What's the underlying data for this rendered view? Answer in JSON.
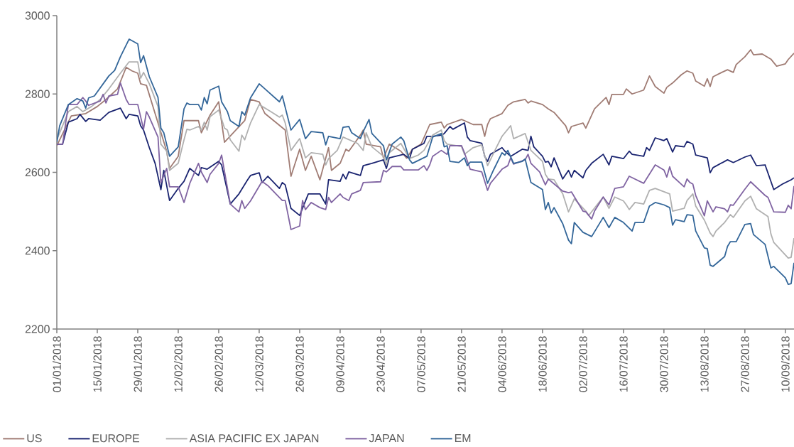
{
  "chart_data": {
    "type": "line",
    "xlim": [
      "2018-01-01",
      "2018-09-13"
    ],
    "xticks": [
      {
        "value": "2018-01-01",
        "label": "01/01/2018"
      },
      {
        "value": "2018-01-15",
        "label": "15/01/2018"
      },
      {
        "value": "2018-01-29",
        "label": "29/01/2018"
      },
      {
        "value": "2018-02-12",
        "label": "12/02/2018"
      },
      {
        "value": "2018-02-26",
        "label": "26/02/2018"
      },
      {
        "value": "2018-03-12",
        "label": "12/03/2018"
      },
      {
        "value": "2018-03-26",
        "label": "26/03/2018"
      },
      {
        "value": "2018-04-09",
        "label": "09/04/2018"
      },
      {
        "value": "2018-04-23",
        "label": "23/04/2018"
      },
      {
        "value": "2018-05-07",
        "label": "07/05/2018"
      },
      {
        "value": "2018-05-21",
        "label": "21/05/2018"
      },
      {
        "value": "2018-06-04",
        "label": "04/06/2018"
      },
      {
        "value": "2018-06-18",
        "label": "18/06/2018"
      },
      {
        "value": "2018-07-02",
        "label": "02/07/2018"
      },
      {
        "value": "2018-07-16",
        "label": "16/07/2018"
      },
      {
        "value": "2018-07-30",
        "label": "30/07/2018"
      },
      {
        "value": "2018-08-13",
        "label": "13/08/2018"
      },
      {
        "value": "2018-08-27",
        "label": "27/08/2018"
      },
      {
        "value": "2018-09-10",
        "label": "10/09/2018"
      }
    ],
    "ylim": [
      2200,
      3000
    ],
    "yticks": [
      2200,
      2400,
      2600,
      2800,
      3000
    ],
    "legend": "bottom",
    "series": [
      {
        "name": "US",
        "color": "#a07c74",
        "x": [
          "2018-01-01",
          "2018-01-06",
          "2018-01-11",
          "2018-01-15",
          "2018-01-18",
          "2018-01-22",
          "2018-01-25",
          "2018-01-27",
          "2018-01-29",
          "2018-01-30",
          "2018-02-01",
          "2018-02-05",
          "2018-02-08",
          "2018-02-09",
          "2018-02-12",
          "2018-02-14",
          "2018-02-19",
          "2018-02-20",
          "2018-02-23",
          "2018-02-26",
          "2018-02-28",
          "2018-03-07",
          "2018-03-09",
          "2018-03-12",
          "2018-03-14",
          "2018-03-18",
          "2018-03-21",
          "2018-03-23",
          "2018-03-26",
          "2018-03-28",
          "2018-03-30",
          "2018-04-02",
          "2018-04-05",
          "2018-04-06",
          "2018-04-09",
          "2018-04-11",
          "2018-04-12",
          "2018-04-16",
          "2018-04-17",
          "2018-04-18",
          "2018-04-23",
          "2018-04-24",
          "2018-04-26",
          "2018-04-30",
          "2018-05-02",
          "2018-05-04",
          "2018-05-07",
          "2018-05-10",
          "2018-05-14",
          "2018-05-15",
          "2018-05-16",
          "2018-05-21",
          "2018-05-22",
          "2018-05-25",
          "2018-05-28",
          "2018-05-29",
          "2018-05-30",
          "2018-05-31",
          "2018-06-04",
          "2018-06-06",
          "2018-06-08",
          "2018-06-12",
          "2018-06-13",
          "2018-06-14",
          "2018-06-18",
          "2018-06-20",
          "2018-06-22",
          "2018-06-26",
          "2018-06-27",
          "2018-06-28",
          "2018-07-02",
          "2018-07-03",
          "2018-07-06",
          "2018-07-10",
          "2018-07-11",
          "2018-07-12",
          "2018-07-16",
          "2018-07-17",
          "2018-07-19",
          "2018-07-23",
          "2018-07-25",
          "2018-07-27",
          "2018-07-30",
          "2018-07-31",
          "2018-08-02",
          "2018-08-05",
          "2018-08-07",
          "2018-08-09",
          "2018-08-10",
          "2018-08-13",
          "2018-08-14",
          "2018-08-15",
          "2018-08-16",
          "2018-08-19",
          "2018-08-21",
          "2018-08-23",
          "2018-08-24",
          "2018-08-27",
          "2018-08-29",
          "2018-08-30",
          "2018-09-02",
          "2018-09-05",
          "2018-09-07",
          "2018-09-10",
          "2018-09-11",
          "2018-09-13"
        ],
        "values": [
          2668,
          2744,
          2750,
          2768,
          2786,
          2813,
          2868,
          2859,
          2853,
          2826,
          2822,
          2726,
          2654,
          2610,
          2641,
          2732,
          2732,
          2701,
          2746,
          2780,
          2677,
          2732,
          2786,
          2780,
          2750,
          2726,
          2708,
          2590,
          2659,
          2605,
          2641,
          2581,
          2663,
          2605,
          2623,
          2659,
          2654,
          2695,
          2708,
          2672,
          2665,
          2636,
          2672,
          2654,
          2636,
          2659,
          2672,
          2722,
          2728,
          2713,
          2722,
          2735,
          2732,
          2722,
          2722,
          2692,
          2722,
          2737,
          2750,
          2771,
          2780,
          2786,
          2777,
          2782,
          2773,
          2762,
          2753,
          2719,
          2701,
          2717,
          2726,
          2713,
          2762,
          2791,
          2773,
          2799,
          2799,
          2813,
          2800,
          2810,
          2846,
          2819,
          2802,
          2817,
          2828,
          2849,
          2859,
          2853,
          2833,
          2820,
          2839,
          2819,
          2844,
          2855,
          2862,
          2855,
          2875,
          2895,
          2913,
          2900,
          2902,
          2889,
          2871,
          2877,
          2888,
          2904
        ]
      },
      {
        "name": "EUROPE",
        "color": "#1a2470",
        "x": [
          "2018-01-01",
          "2018-01-03",
          "2018-01-05",
          "2018-01-08",
          "2018-01-09",
          "2018-01-11",
          "2018-01-12",
          "2018-01-16",
          "2018-01-19",
          "2018-01-23",
          "2018-01-25",
          "2018-01-26",
          "2018-01-29",
          "2018-01-30",
          "2018-01-31",
          "2018-02-02",
          "2018-02-04",
          "2018-02-06",
          "2018-02-07",
          "2018-02-09",
          "2018-02-12",
          "2018-02-14",
          "2018-02-16",
          "2018-02-19",
          "2018-02-20",
          "2018-02-22",
          "2018-02-26",
          "2018-02-27",
          "2018-03-02",
          "2018-03-05",
          "2018-03-08",
          "2018-03-09",
          "2018-03-12",
          "2018-03-13",
          "2018-03-15",
          "2018-03-19",
          "2018-03-20",
          "2018-03-21",
          "2018-03-23",
          "2018-03-26",
          "2018-03-29",
          "2018-04-02",
          "2018-04-04",
          "2018-04-05",
          "2018-04-09",
          "2018-04-10",
          "2018-04-11",
          "2018-04-12",
          "2018-04-16",
          "2018-04-17",
          "2018-04-20",
          "2018-04-24",
          "2018-04-25",
          "2018-04-26",
          "2018-05-01",
          "2018-05-03",
          "2018-05-04",
          "2018-05-08",
          "2018-05-09",
          "2018-05-11",
          "2018-05-14",
          "2018-05-15",
          "2018-05-17",
          "2018-05-18",
          "2018-05-22",
          "2018-05-23",
          "2018-05-24",
          "2018-05-28",
          "2018-05-29",
          "2018-05-30",
          "2018-05-31",
          "2018-06-04",
          "2018-06-05",
          "2018-06-07",
          "2018-06-11",
          "2018-06-13",
          "2018-06-14",
          "2018-06-15",
          "2018-06-18",
          "2018-06-19",
          "2018-06-20",
          "2018-06-21",
          "2018-06-22",
          "2018-06-25",
          "2018-06-27",
          "2018-06-28",
          "2018-06-29",
          "2018-07-02",
          "2018-07-03",
          "2018-07-05",
          "2018-07-09",
          "2018-07-11",
          "2018-07-12",
          "2018-07-16",
          "2018-07-18",
          "2018-07-19",
          "2018-07-23",
          "2018-07-24",
          "2018-07-25",
          "2018-07-27",
          "2018-07-30",
          "2018-07-31",
          "2018-08-02",
          "2018-08-03",
          "2018-08-06",
          "2018-08-07",
          "2018-08-09",
          "2018-08-10",
          "2018-08-14",
          "2018-08-15",
          "2018-08-16",
          "2018-08-21",
          "2018-08-23",
          "2018-08-27",
          "2018-08-29",
          "2018-08-31",
          "2018-09-03",
          "2018-09-06",
          "2018-09-09",
          "2018-09-12",
          "2018-09-13"
        ],
        "values": [
          2672,
          2672,
          2728,
          2737,
          2748,
          2730,
          2737,
          2733,
          2753,
          2764,
          2737,
          2748,
          2744,
          2719,
          2708,
          2663,
          2623,
          2556,
          2605,
          2528,
          2559,
          2577,
          2610,
          2592,
          2612,
          2608,
          2628,
          2619,
          2519,
          2545,
          2581,
          2592,
          2599,
          2574,
          2590,
          2559,
          2574,
          2568,
          2508,
          2490,
          2545,
          2545,
          2519,
          2581,
          2577,
          2595,
          2583,
          2601,
          2592,
          2617,
          2623,
          2632,
          2610,
          2637,
          2646,
          2635,
          2659,
          2674,
          2692,
          2692,
          2695,
          2699,
          2717,
          2710,
          2726,
          2690,
          2681,
          2674,
          2641,
          2628,
          2646,
          2663,
          2654,
          2641,
          2659,
          2656,
          2692,
          2665,
          2641,
          2626,
          2628,
          2614,
          2637,
          2583,
          2605,
          2588,
          2605,
          2586,
          2605,
          2623,
          2646,
          2619,
          2641,
          2635,
          2654,
          2646,
          2641,
          2663,
          2656,
          2688,
          2681,
          2686,
          2652,
          2668,
          2665,
          2679,
          2672,
          2644,
          2637,
          2599,
          2612,
          2632,
          2625,
          2639,
          2644,
          2617,
          2619,
          2556,
          2570,
          2581,
          2586
        ]
      },
      {
        "name": "ASIA PACIFIC EX JAPAN",
        "color": "#b0b0b0",
        "x": [
          "2018-01-01",
          "2018-01-05",
          "2018-01-08",
          "2018-01-10",
          "2018-01-13",
          "2018-01-16",
          "2018-01-19",
          "2018-01-23",
          "2018-01-26",
          "2018-01-29",
          "2018-01-30",
          "2018-01-31",
          "2018-02-02",
          "2018-02-05",
          "2018-02-06",
          "2018-02-08",
          "2018-02-09",
          "2018-02-12",
          "2018-02-14",
          "2018-02-15",
          "2018-02-16",
          "2018-02-19",
          "2018-02-20",
          "2018-02-21",
          "2018-02-22",
          "2018-02-23",
          "2018-02-26",
          "2018-02-28",
          "2018-03-01",
          "2018-03-02",
          "2018-03-05",
          "2018-03-06",
          "2018-03-07",
          "2018-03-09",
          "2018-03-12",
          "2018-03-14",
          "2018-03-16",
          "2018-03-19",
          "2018-03-20",
          "2018-03-21",
          "2018-03-23",
          "2018-03-26",
          "2018-03-28",
          "2018-03-30",
          "2018-04-03",
          "2018-04-04",
          "2018-04-05",
          "2018-04-08",
          "2018-04-10",
          "2018-04-15",
          "2018-04-17",
          "2018-04-18",
          "2018-04-20",
          "2018-04-24",
          "2018-04-25",
          "2018-04-26",
          "2018-04-30",
          "2018-05-03",
          "2018-05-06",
          "2018-05-08",
          "2018-05-11",
          "2018-05-14",
          "2018-05-15",
          "2018-05-16",
          "2018-05-21",
          "2018-05-22",
          "2018-05-25",
          "2018-05-28",
          "2018-05-30",
          "2018-06-02",
          "2018-06-04",
          "2018-06-07",
          "2018-06-08",
          "2018-06-12",
          "2018-06-14",
          "2018-06-18",
          "2018-06-19",
          "2018-06-20",
          "2018-06-22",
          "2018-06-25",
          "2018-06-27",
          "2018-06-29",
          "2018-07-03",
          "2018-07-04",
          "2018-07-09",
          "2018-07-11",
          "2018-07-13",
          "2018-07-16",
          "2018-07-17",
          "2018-07-18",
          "2018-07-20",
          "2018-07-23",
          "2018-07-25",
          "2018-07-27",
          "2018-08-01",
          "2018-08-02",
          "2018-08-06",
          "2018-08-07",
          "2018-08-09",
          "2018-08-10",
          "2018-08-13",
          "2018-08-15",
          "2018-08-16",
          "2018-08-17",
          "2018-08-20",
          "2018-08-22",
          "2018-08-23",
          "2018-08-27",
          "2018-08-29",
          "2018-08-31",
          "2018-09-04",
          "2018-09-05",
          "2018-09-06",
          "2018-09-11",
          "2018-09-12",
          "2018-09-13"
        ],
        "values": [
          2683,
          2755,
          2768,
          2755,
          2768,
          2786,
          2813,
          2853,
          2882,
          2882,
          2840,
          2855,
          2826,
          2768,
          2672,
          2654,
          2605,
          2623,
          2683,
          2710,
          2708,
          2717,
          2708,
          2728,
          2708,
          2742,
          2759,
          2713,
          2708,
          2683,
          2654,
          2695,
          2683,
          2726,
          2773,
          2764,
          2755,
          2741,
          2746,
          2726,
          2656,
          2686,
          2637,
          2650,
          2646,
          2619,
          2635,
          2656,
          2690,
          2674,
          2656,
          2701,
          2665,
          2641,
          2619,
          2650,
          2674,
          2635,
          2644,
          2656,
          2695,
          2708,
          2681,
          2672,
          2666,
          2646,
          2663,
          2670,
          2617,
          2663,
          2692,
          2719,
          2686,
          2699,
          2656,
          2628,
          2595,
          2583,
          2581,
          2545,
          2499,
          2532,
          2501,
          2490,
          2537,
          2508,
          2537,
          2527,
          2517,
          2505,
          2523,
          2519,
          2554,
          2559,
          2545,
          2501,
          2508,
          2528,
          2545,
          2514,
          2478,
          2445,
          2436,
          2450,
          2472,
          2492,
          2485,
          2527,
          2539,
          2507,
          2487,
          2443,
          2421,
          2381,
          2383,
          2432
        ]
      },
      {
        "name": "JAPAN",
        "color": "#8064a2",
        "x": [
          "2018-01-01",
          "2018-01-03",
          "2018-01-05",
          "2018-01-08",
          "2018-01-10",
          "2018-01-11",
          "2018-01-12",
          "2018-01-16",
          "2018-01-17",
          "2018-01-18",
          "2018-01-19",
          "2018-01-22",
          "2018-01-23",
          "2018-01-25",
          "2018-01-26",
          "2018-01-29",
          "2018-01-31",
          "2018-02-01",
          "2018-02-02",
          "2018-02-05",
          "2018-02-06",
          "2018-02-08",
          "2018-02-09",
          "2018-02-12",
          "2018-02-14",
          "2018-02-16",
          "2018-02-19",
          "2018-02-20",
          "2018-02-22",
          "2018-02-23",
          "2018-02-26",
          "2018-02-27",
          "2018-03-02",
          "2018-03-05",
          "2018-03-06",
          "2018-03-07",
          "2018-03-09",
          "2018-03-13",
          "2018-03-15",
          "2018-03-20",
          "2018-03-21",
          "2018-03-23",
          "2018-03-26",
          "2018-03-27",
          "2018-03-28",
          "2018-03-30",
          "2018-04-02",
          "2018-04-04",
          "2018-04-05",
          "2018-04-06",
          "2018-04-09",
          "2018-04-10",
          "2018-04-12",
          "2018-04-13",
          "2018-04-16",
          "2018-04-17",
          "2018-04-23",
          "2018-04-24",
          "2018-04-25",
          "2018-04-27",
          "2018-04-30",
          "2018-05-01",
          "2018-05-06",
          "2018-05-08",
          "2018-05-09",
          "2018-05-10",
          "2018-05-11",
          "2018-05-14",
          "2018-05-16",
          "2018-05-17",
          "2018-05-21",
          "2018-05-22",
          "2018-05-24",
          "2018-05-28",
          "2018-05-30",
          "2018-05-31",
          "2018-06-04",
          "2018-06-06",
          "2018-06-07",
          "2018-06-08",
          "2018-06-12",
          "2018-06-13",
          "2018-06-14",
          "2018-06-17",
          "2018-06-19",
          "2018-06-20",
          "2018-06-25",
          "2018-06-27",
          "2018-06-28",
          "2018-07-02",
          "2018-07-03",
          "2018-07-05",
          "2018-07-06",
          "2018-07-09",
          "2018-07-11",
          "2018-07-13",
          "2018-07-16",
          "2018-07-18",
          "2018-07-23",
          "2018-07-27",
          "2018-07-30",
          "2018-07-31",
          "2018-08-01",
          "2018-08-02",
          "2018-08-06",
          "2018-08-07",
          "2018-08-08",
          "2018-08-09",
          "2018-08-10",
          "2018-08-13",
          "2018-08-14",
          "2018-08-16",
          "2018-08-17",
          "2018-08-20",
          "2018-08-21",
          "2018-08-22",
          "2018-08-23",
          "2018-08-27",
          "2018-08-29",
          "2018-09-03",
          "2018-09-04",
          "2018-09-06",
          "2018-09-10",
          "2018-09-11",
          "2018-09-12",
          "2018-09-13"
        ],
        "values": [
          2672,
          2672,
          2773,
          2773,
          2791,
          2782,
          2771,
          2782,
          2799,
          2777,
          2795,
          2799,
          2828,
          2786,
          2773,
          2773,
          2710,
          2755,
          2741,
          2690,
          2574,
          2610,
          2563,
          2563,
          2523,
          2572,
          2623,
          2601,
          2574,
          2595,
          2623,
          2644,
          2519,
          2499,
          2528,
          2508,
          2527,
          2577,
          2566,
          2528,
          2528,
          2454,
          2463,
          2528,
          2505,
          2523,
          2510,
          2505,
          2536,
          2523,
          2545,
          2536,
          2528,
          2545,
          2554,
          2574,
          2576,
          2605,
          2601,
          2615,
          2615,
          2606,
          2606,
          2617,
          2605,
          2619,
          2641,
          2656,
          2646,
          2668,
          2668,
          2650,
          2608,
          2601,
          2554,
          2572,
          2608,
          2617,
          2637,
          2621,
          2632,
          2646,
          2623,
          2601,
          2568,
          2583,
          2552,
          2548,
          2550,
          2501,
          2499,
          2481,
          2501,
          2537,
          2517,
          2559,
          2563,
          2590,
          2572,
          2619,
          2606,
          2588,
          2614,
          2590,
          2563,
          2583,
          2574,
          2570,
          2541,
          2489,
          2527,
          2499,
          2512,
          2507,
          2499,
          2517,
          2516,
          2557,
          2576,
          2541,
          2536,
          2499,
          2498,
          2516,
          2507,
          2565
        ]
      },
      {
        "name": "EM",
        "color": "#336699",
        "x": [
          "2018-01-01",
          "2018-01-02",
          "2018-01-05",
          "2018-01-08",
          "2018-01-10",
          "2018-01-11",
          "2018-01-12",
          "2018-01-14",
          "2018-01-19",
          "2018-01-21",
          "2018-01-23",
          "2018-01-26",
          "2018-01-29",
          "2018-01-30",
          "2018-01-31",
          "2018-02-02",
          "2018-02-05",
          "2018-02-06",
          "2018-02-07",
          "2018-02-09",
          "2018-02-12",
          "2018-02-14",
          "2018-02-15",
          "2018-02-16",
          "2018-02-19",
          "2018-02-20",
          "2018-02-21",
          "2018-02-22",
          "2018-02-23",
          "2018-02-26",
          "2018-02-27",
          "2018-03-01",
          "2018-03-02",
          "2018-03-05",
          "2018-03-06",
          "2018-03-07",
          "2018-03-09",
          "2018-03-12",
          "2018-03-14",
          "2018-03-19",
          "2018-03-20",
          "2018-03-23",
          "2018-03-26",
          "2018-03-28",
          "2018-03-30",
          "2018-04-03",
          "2018-04-04",
          "2018-04-05",
          "2018-04-09",
          "2018-04-10",
          "2018-04-12",
          "2018-04-13",
          "2018-04-16",
          "2018-04-17",
          "2018-04-19",
          "2018-04-20",
          "2018-04-24",
          "2018-04-25",
          "2018-04-27",
          "2018-04-30",
          "2018-05-01",
          "2018-05-03",
          "2018-05-04",
          "2018-05-09",
          "2018-05-11",
          "2018-05-14",
          "2018-05-15",
          "2018-05-16",
          "2018-05-17",
          "2018-05-20",
          "2018-05-22",
          "2018-05-23",
          "2018-05-24",
          "2018-05-28",
          "2018-05-30",
          "2018-06-01",
          "2018-06-04",
          "2018-06-05",
          "2018-06-06",
          "2018-06-08",
          "2018-06-11",
          "2018-06-12",
          "2018-06-14",
          "2018-06-18",
          "2018-06-19",
          "2018-06-20",
          "2018-06-21",
          "2018-06-22",
          "2018-06-25",
          "2018-06-27",
          "2018-06-28",
          "2018-06-29",
          "2018-07-02",
          "2018-07-05",
          "2018-07-09",
          "2018-07-11",
          "2018-07-13",
          "2018-07-16",
          "2018-07-19",
          "2018-07-20",
          "2018-07-23",
          "2018-07-25",
          "2018-07-27",
          "2018-07-30",
          "2018-08-01",
          "2018-08-02",
          "2018-08-03",
          "2018-08-06",
          "2018-08-07",
          "2018-08-09",
          "2018-08-10",
          "2018-08-13",
          "2018-08-14",
          "2018-08-15",
          "2018-08-16",
          "2018-08-20",
          "2018-08-21",
          "2018-08-22",
          "2018-08-24",
          "2018-08-27",
          "2018-08-29",
          "2018-08-30",
          "2018-09-03",
          "2018-09-05",
          "2018-09-06",
          "2018-09-10",
          "2018-09-11",
          "2018-09-12",
          "2018-09-13"
        ],
        "values": [
          2677,
          2719,
          2773,
          2788,
          2782,
          2764,
          2790,
          2795,
          2846,
          2860,
          2895,
          2940,
          2928,
          2880,
          2898,
          2844,
          2791,
          2713,
          2701,
          2641,
          2665,
          2762,
          2777,
          2773,
          2773,
          2759,
          2791,
          2775,
          2810,
          2820,
          2780,
          2755,
          2732,
          2717,
          2755,
          2746,
          2790,
          2826,
          2813,
          2780,
          2795,
          2708,
          2735,
          2686,
          2704,
          2701,
          2670,
          2692,
          2686,
          2715,
          2717,
          2701,
          2686,
          2704,
          2735,
          2699,
          2668,
          2632,
          2672,
          2690,
          2681,
          2632,
          2623,
          2641,
          2690,
          2699,
          2665,
          2668,
          2628,
          2625,
          2637,
          2617,
          2626,
          2626,
          2572,
          2605,
          2650,
          2644,
          2656,
          2623,
          2628,
          2634,
          2574,
          2556,
          2505,
          2523,
          2496,
          2510,
          2469,
          2427,
          2418,
          2472,
          2447,
          2436,
          2485,
          2459,
          2485,
          2472,
          2450,
          2472,
          2472,
          2514,
          2523,
          2517,
          2510,
          2465,
          2479,
          2474,
          2492,
          2490,
          2450,
          2407,
          2405,
          2363,
          2360,
          2385,
          2411,
          2423,
          2423,
          2467,
          2469,
          2441,
          2416,
          2356,
          2360,
          2331,
          2314,
          2316,
          2369
        ]
      }
    ]
  }
}
